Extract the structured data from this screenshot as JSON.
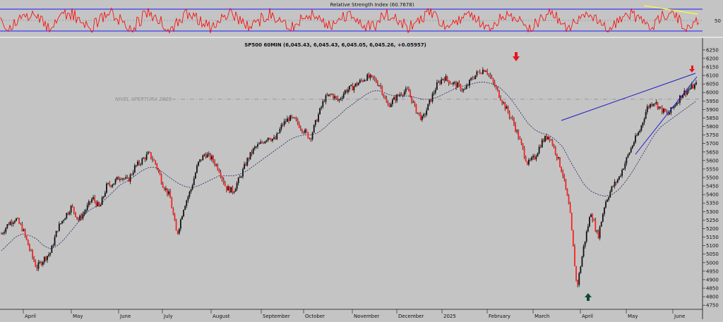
{
  "rsi_panel": {
    "title": "Relative Strength Index (60.7678)",
    "level_label": "50",
    "upper_level": 70,
    "lower_level": 30,
    "line_color": "#ff0000",
    "band_color": "#1a1aff",
    "trendline_color": "#ffff33"
  },
  "price_panel": {
    "title": "SP500 60MIN (6,045.43, 6,045.43, 6,045.05, 6,045.26, +0.05957)",
    "annotation": "NIVEL APERTURA 2025",
    "annotation_level": 5960,
    "arrow_colors": {
      "down": "#e8141e",
      "up": "#0c4a3a"
    },
    "trendline_color": "#1a1acc",
    "ma_color": "#222266",
    "background": "#c4c4c4"
  },
  "chart_data": {
    "type": "candlestick",
    "title": "SP500 60MIN (6,045.43, 6,045.43, 6,045.05, 6,045.26, +0.05957)",
    "y_ticks": [
      6250,
      6200,
      6150,
      6100,
      6050,
      6000,
      5950,
      5900,
      5850,
      5800,
      5750,
      5700,
      5650,
      5600,
      5550,
      5500,
      5450,
      5400,
      5350,
      5300,
      5250,
      5200,
      5150,
      5100,
      5050,
      5000,
      4950,
      4900,
      4850,
      4800,
      4750
    ],
    "ylim": [
      4730,
      6270
    ],
    "x_labels": [
      "April",
      "May",
      "June",
      "July",
      "August",
      "September",
      "October",
      "November",
      "December",
      "2025",
      "February",
      "March",
      "April",
      "May",
      "June"
    ],
    "price_path": [
      5170,
      5230,
      5260,
      5200,
      5080,
      4970,
      5020,
      5060,
      5200,
      5270,
      5330,
      5250,
      5310,
      5380,
      5320,
      5450,
      5470,
      5510,
      5480,
      5560,
      5600,
      5640,
      5580,
      5460,
      5390,
      5160,
      5330,
      5430,
      5580,
      5640,
      5610,
      5550,
      5440,
      5420,
      5500,
      5600,
      5670,
      5700,
      5740,
      5720,
      5810,
      5850,
      5830,
      5780,
      5730,
      5850,
      5960,
      5990,
      5950,
      6010,
      6030,
      6060,
      6090,
      6080,
      6040,
      5920,
      5960,
      6000,
      6010,
      5900,
      5840,
      5940,
      6040,
      6090,
      6060,
      6040,
      6010,
      6080,
      6120,
      6140,
      6060,
      5980,
      5900,
      5820,
      5700,
      5580,
      5620,
      5710,
      5750,
      5650,
      5520,
      5300,
      4850,
      5100,
      5300,
      5150,
      5350,
      5440,
      5500,
      5600,
      5700,
      5780,
      5910,
      5950,
      5900,
      5870,
      5930,
      5990,
      6020,
      6045
    ],
    "moving_average": [
      5070,
      5110,
      5150,
      5170,
      5160,
      5140,
      5100,
      5080,
      5100,
      5140,
      5190,
      5240,
      5290,
      5320,
      5340,
      5380,
      5420,
      5460,
      5480,
      5510,
      5540,
      5560,
      5560,
      5530,
      5500,
      5470,
      5450,
      5440,
      5450,
      5470,
      5490,
      5510,
      5510,
      5510,
      5520,
      5540,
      5570,
      5600,
      5630,
      5660,
      5690,
      5720,
      5740,
      5750,
      5750,
      5760,
      5790,
      5830,
      5860,
      5900,
      5930,
      5960,
      5990,
      6010,
      6010,
      5990,
      5980,
      5980,
      5980,
      5970,
      5960,
      5960,
      5970,
      5990,
      6010,
      6030,
      6040,
      6050,
      6060,
      6060,
      6050,
      6030,
      5990,
      5940,
      5880,
      5820,
      5780,
      5760,
      5750,
      5720,
      5680,
      5600,
      5530,
      5460,
      5420,
      5400,
      5390,
      5400,
      5430,
      5480,
      5540,
      5610,
      5680,
      5750,
      5800,
      5830,
      5860,
      5890,
      5920,
      5950
    ],
    "annotations": [
      {
        "text": "NIVEL APERTURA 2025",
        "y": 5960
      },
      {
        "type": "down-arrow",
        "label": "February top"
      },
      {
        "type": "up-arrow",
        "label": "April low"
      },
      {
        "type": "down-arrow",
        "label": "June high"
      }
    ]
  }
}
